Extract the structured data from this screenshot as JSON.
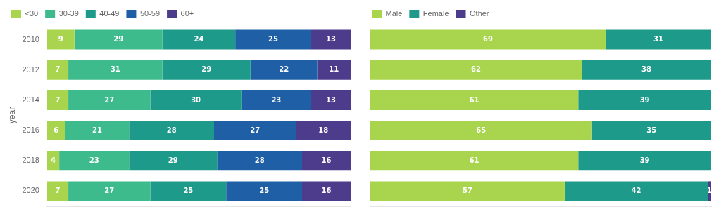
{
  "chart_data": [
    {
      "type": "bar",
      "orientation": "horizontal",
      "stacked": true,
      "categories": [
        "2010",
        "2012",
        "2014",
        "2016",
        "2018",
        "2020"
      ],
      "ylabel": "year",
      "xlim": [
        0,
        100
      ],
      "tick_labels": "y",
      "grid": false,
      "legend": "top",
      "data_labels": true,
      "series": [
        {
          "name": "<30",
          "color": "#a8d44e",
          "values": [
            9,
            7,
            7,
            6,
            4,
            7
          ]
        },
        {
          "name": "30-39",
          "color": "#3dbb8d",
          "values": [
            29,
            31,
            27,
            21,
            23,
            27
          ]
        },
        {
          "name": "40-49",
          "color": "#1e9a8a",
          "values": [
            24,
            29,
            30,
            28,
            29,
            25
          ]
        },
        {
          "name": "50-59",
          "color": "#1f5fa6",
          "values": [
            25,
            22,
            23,
            27,
            28,
            25
          ]
        },
        {
          "name": "60+",
          "color": "#4d3b8c",
          "values": [
            13,
            11,
            13,
            18,
            16,
            16
          ]
        }
      ]
    },
    {
      "type": "bar",
      "orientation": "horizontal",
      "stacked": true,
      "categories": [
        "2010",
        "2012",
        "2014",
        "2016",
        "2018",
        "2020"
      ],
      "xlim": [
        0,
        100
      ],
      "tick_labels": false,
      "grid": false,
      "legend": "top",
      "data_labels": true,
      "series": [
        {
          "name": "Male",
          "color": "#a8d44e",
          "values": [
            69,
            62,
            61,
            65,
            61,
            57
          ]
        },
        {
          "name": "Female",
          "color": "#1e9a8a",
          "values": [
            31,
            38,
            39,
            35,
            39,
            42
          ]
        },
        {
          "name": "Other",
          "color": "#4d3b8c",
          "values": [
            0,
            0,
            0,
            0,
            0,
            1
          ],
          "value_labels": [
            null,
            null,
            null,
            null,
            null,
            "1"
          ]
        }
      ]
    }
  ]
}
